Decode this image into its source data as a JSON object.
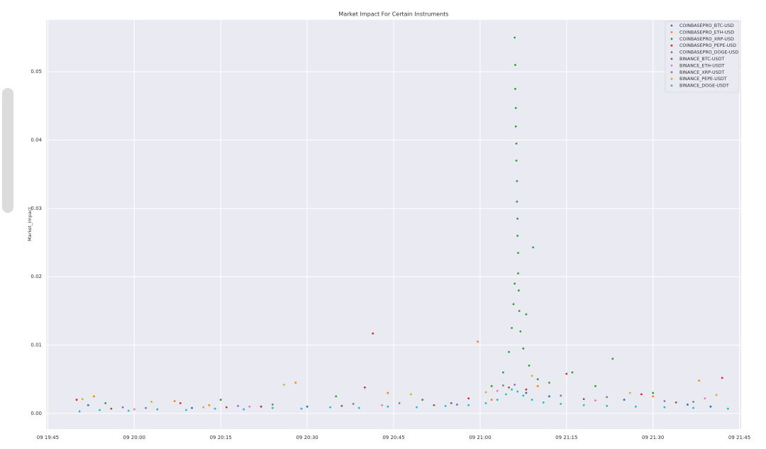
{
  "chart_data": {
    "type": "scatter",
    "title": "Market Impact For Certain Instruments",
    "y_label": "Market_impact",
    "xlim": [
      1184.7,
      1305.3
    ],
    "ylim": [
      -0.0023,
      0.0576
    ],
    "grid": true,
    "legend": "upper right",
    "xticks": [
      {
        "value": 1185,
        "label": "09 19:45"
      },
      {
        "value": 1200,
        "label": "09 20:00"
      },
      {
        "value": 1215,
        "label": "09 20:15"
      },
      {
        "value": 1230,
        "label": "09 20:30"
      },
      {
        "value": 1245,
        "label": "09 20:45"
      },
      {
        "value": 1260,
        "label": "09 21:00"
      },
      {
        "value": 1275,
        "label": "09 21:15"
      },
      {
        "value": 1290,
        "label": "09 21:30"
      },
      {
        "value": 1305,
        "label": "09 21:45"
      }
    ],
    "yticks": [
      {
        "value": 0,
        "label": "0.00"
      },
      {
        "value": 0.01,
        "label": "0.01"
      },
      {
        "value": 0.02,
        "label": "0.02"
      },
      {
        "value": 0.03,
        "label": "0.03"
      },
      {
        "value": 0.04,
        "label": "0.04"
      },
      {
        "value": 0.05,
        "label": "0.05"
      }
    ],
    "series": [
      {
        "name": "COINBASEPRO_BTC-USD",
        "color": "#1f77b4",
        "x": [
          1192,
          1210,
          1230,
          1255,
          1268,
          1272,
          1285,
          1296,
          1300
        ],
        "values": [
          0.0012,
          0.0008,
          0.001,
          0.0015,
          0.003,
          0.0025,
          0.002,
          0.0013,
          0.001
        ]
      },
      {
        "name": "COINBASEPRO_ETH-USD",
        "color": "#ff7f0e",
        "x": [
          1193,
          1207,
          1213,
          1228,
          1244,
          1259.6,
          1262,
          1270,
          1290,
          1298
        ],
        "values": [
          0.0025,
          0.0018,
          0.0012,
          0.0045,
          0.003,
          0.0105,
          0.002,
          0.004,
          0.0025,
          0.0048
        ]
      },
      {
        "name": "COINBASEPRO_XRP-USD",
        "color": "#2ca02c",
        "x": [
          1195,
          1215,
          1235,
          1250,
          1262,
          1264,
          1265,
          1265.5,
          1265.8,
          1266,
          1266,
          1266.1,
          1266.1,
          1266.2,
          1266.2,
          1266.3,
          1266.3,
          1266.4,
          1266.4,
          1266.5,
          1266.5,
          1266.6,
          1266.6,
          1266.7,
          1266.8,
          1267,
          1267.5,
          1268,
          1268.5,
          1269.2,
          1270,
          1272,
          1276,
          1280,
          1283,
          1290
        ],
        "values": [
          0.0015,
          0.002,
          0.0025,
          0.002,
          0.004,
          0.006,
          0.009,
          0.0125,
          0.016,
          0.019,
          0.055,
          0.051,
          0.0475,
          0.0447,
          0.042,
          0.0395,
          0.037,
          0.034,
          0.031,
          0.0285,
          0.026,
          0.0235,
          0.0205,
          0.018,
          0.015,
          0.012,
          0.0095,
          0.0145,
          0.007,
          0.0243,
          0.005,
          0.0045,
          0.006,
          0.004,
          0.008,
          0.003
        ]
      },
      {
        "name": "COINBASEPRO_PEPE-USD",
        "color": "#d62728",
        "x": [
          1190,
          1208,
          1222,
          1240,
          1241.4,
          1258,
          1268,
          1275,
          1288,
          1302
        ],
        "values": [
          0.002,
          0.0015,
          0.001,
          0.0038,
          0.0117,
          0.0022,
          0.0035,
          0.0058,
          0.0028,
          0.0052
        ]
      },
      {
        "name": "COINBASEPRO_DOGE-USD",
        "color": "#9467bd",
        "x": [
          1198,
          1218,
          1238,
          1256,
          1266,
          1274,
          1292
        ],
        "values": [
          0.0009,
          0.0011,
          0.0014,
          0.0013,
          0.0042,
          0.0026,
          0.0018
        ]
      },
      {
        "name": "BINANCE_BTC-USDT",
        "color": "#8c564b",
        "x": [
          1196,
          1216,
          1236,
          1252,
          1265,
          1278,
          1294
        ],
        "values": [
          0.0007,
          0.0009,
          0.0011,
          0.0012,
          0.0038,
          0.0021,
          0.0016
        ]
      },
      {
        "name": "BINANCE_ETH-USDT",
        "color": "#e377c2",
        "x": [
          1200,
          1220,
          1243,
          1263,
          1280,
          1299
        ],
        "values": [
          0.0006,
          0.001,
          0.0012,
          0.0033,
          0.0019,
          0.0022
        ]
      },
      {
        "name": "BINANCE_XRP-USDT",
        "color": "#7f7f7f",
        "x": [
          1202,
          1224,
          1246,
          1264,
          1282,
          1297
        ],
        "values": [
          0.0008,
          0.0013,
          0.0015,
          0.0041,
          0.0024,
          0.0017
        ]
      },
      {
        "name": "BINANCE_PEPE-USDT",
        "color": "#bcbd22",
        "x": [
          1191,
          1203,
          1212,
          1226,
          1248,
          1261,
          1269,
          1286,
          1301
        ],
        "values": [
          0.0021,
          0.0017,
          0.0009,
          0.0042,
          0.0028,
          0.0031,
          0.0055,
          0.003,
          0.0027
        ]
      },
      {
        "name": "BINANCE_DOGE-USDT",
        "color": "#17becf",
        "x": [
          1190.5,
          1194,
          1199,
          1204,
          1209,
          1214,
          1219,
          1224,
          1229,
          1234,
          1239,
          1244,
          1249,
          1254,
          1258,
          1261,
          1263,
          1264.5,
          1265.5,
          1266.5,
          1267.5,
          1269,
          1271,
          1274,
          1278,
          1282,
          1287,
          1292,
          1297,
          1303
        ],
        "values": [
          0.0003,
          0.0005,
          0.0004,
          0.0006,
          0.0005,
          0.0007,
          0.0006,
          0.0008,
          0.0007,
          0.0009,
          0.0008,
          0.001,
          0.0009,
          0.0011,
          0.0012,
          0.0015,
          0.002,
          0.0028,
          0.0035,
          0.0032,
          0.0026,
          0.002,
          0.0016,
          0.0014,
          0.0012,
          0.0011,
          0.001,
          0.0009,
          0.0008,
          0.0007
        ]
      }
    ]
  }
}
